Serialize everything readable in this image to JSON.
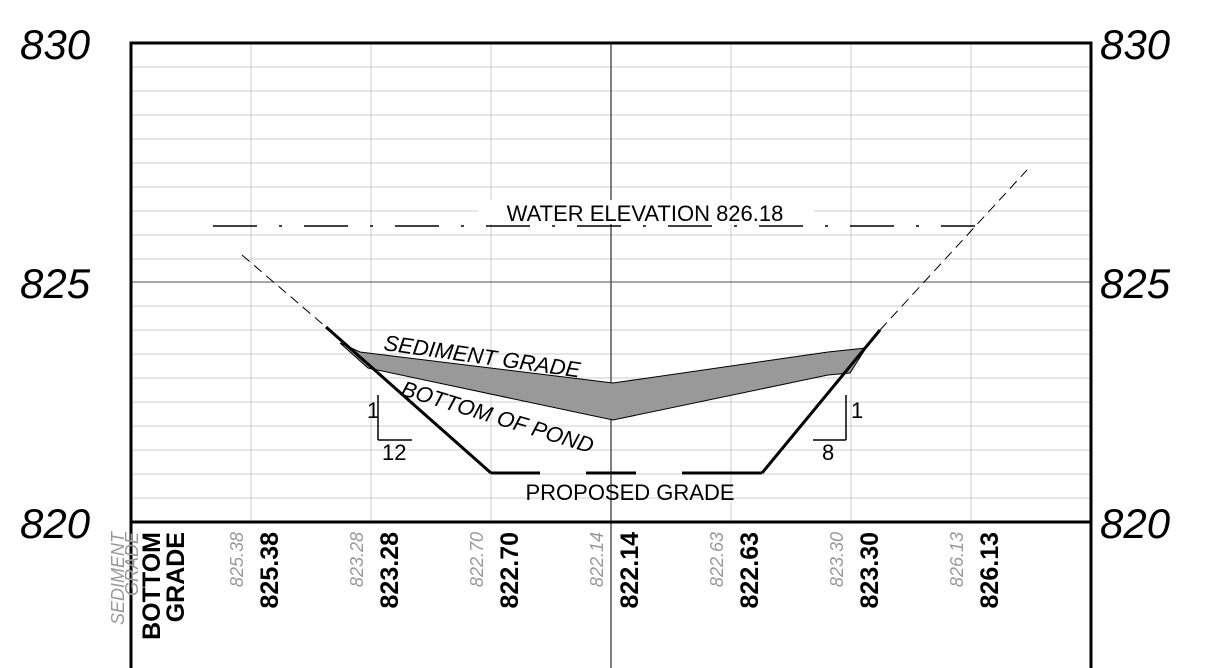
{
  "elevation_labels": {
    "left": [
      "830",
      "825",
      "820"
    ],
    "right": [
      "830",
      "825",
      "820"
    ]
  },
  "annotations": {
    "water_elevation": "WATER ELEVATION 826.18",
    "sediment": "SEDIMENT GRADE",
    "bottom": "BOTTOM OF POND",
    "proposed": "PROPOSED GRADE",
    "slope_left": {
      "rise": "1",
      "run": "12"
    },
    "slope_right": {
      "rise": "1",
      "run": "8"
    }
  },
  "table": {
    "row_labels": {
      "sediment": [
        "SEDIMENT",
        "GRADE"
      ],
      "bottom": [
        "BOTTOM",
        "GRADE"
      ]
    },
    "columns": [
      {
        "sediment": "825.38",
        "bottom": "825.38"
      },
      {
        "sediment": "823.28",
        "bottom": "823.28"
      },
      {
        "sediment": "822.70",
        "bottom": "822.70"
      },
      {
        "sediment": "822.14",
        "bottom": "822.14"
      },
      {
        "sediment": "822.63",
        "bottom": "822.63"
      },
      {
        "sediment": "823.30",
        "bottom": "823.30"
      },
      {
        "sediment": "826.13",
        "bottom": "826.13"
      }
    ]
  }
}
